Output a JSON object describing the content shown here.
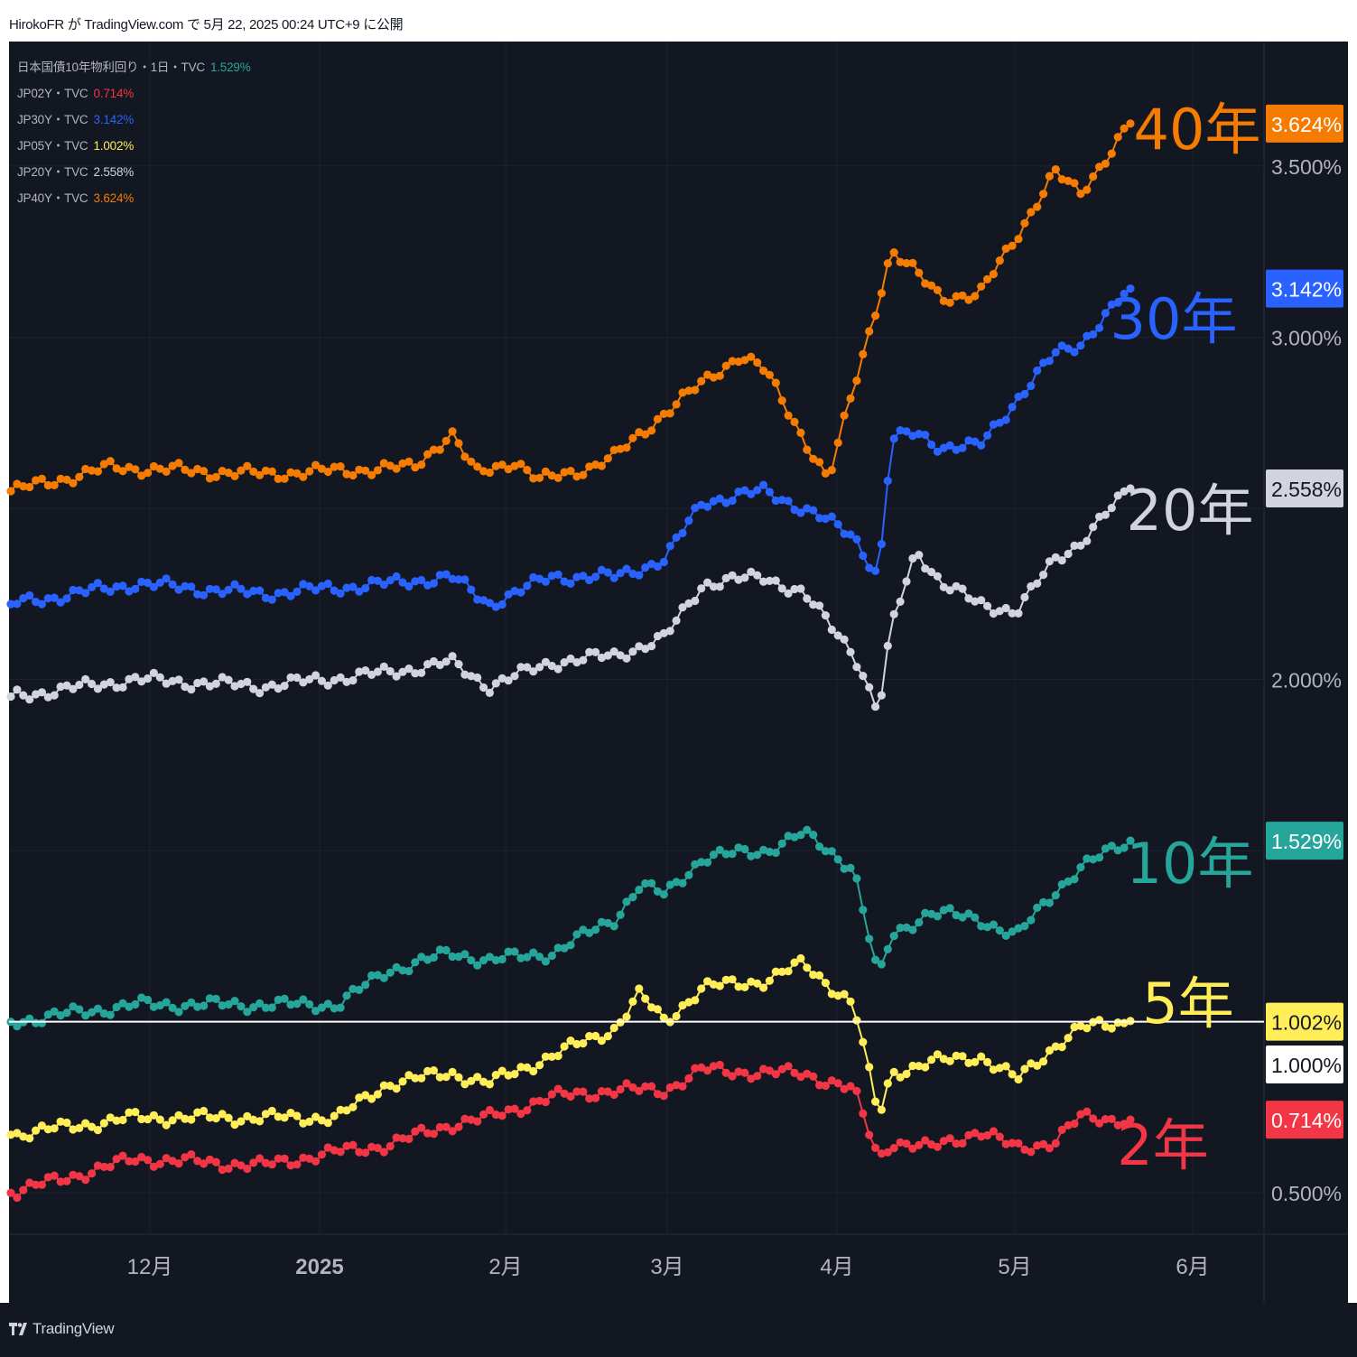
{
  "header": {
    "text": "HirokoFR が TradingView.com で 5月 22, 2025 00:24 UTC+9 に公開"
  },
  "brand": {
    "name": "TradingView"
  },
  "legend": [
    {
      "name": "日本国債10年物利回り・1日・TVC",
      "value": "1.529%",
      "color": "#26a69a"
    },
    {
      "name": "JP02Y・TVC",
      "value": "0.714%",
      "color": "#f23645"
    },
    {
      "name": "JP30Y・TVC",
      "value": "3.142%",
      "color": "#2962ff"
    },
    {
      "name": "JP05Y・TVC",
      "value": "1.002%",
      "color": "#ffee58"
    },
    {
      "name": "JP20Y・TVC",
      "value": "2.558%",
      "color": "#d1d4dc"
    },
    {
      "name": "JP40Y・TVC",
      "value": "3.624%",
      "color": "#f57c00"
    }
  ],
  "chart_data": {
    "type": "line",
    "title": "",
    "xlabel": "",
    "ylabel": "",
    "ylim": [
      0.38,
      3.84
    ],
    "x_ticks": [
      "12月",
      "2025",
      "2月",
      "3月",
      "4月",
      "5月",
      "6月"
    ],
    "y_ticks": [
      "3.500%",
      "3.000%",
      "2.000%",
      "0.500%"
    ],
    "horizontal_line": {
      "value": 1.0,
      "label": "1.000%",
      "color": "#ffffff"
    },
    "series": [
      {
        "name": "40年",
        "code": "JP40Y",
        "color": "#f57c00",
        "last": 3.624,
        "last_label": "3.624%",
        "anchors": [
          [
            0,
            2.55
          ],
          [
            0.08,
            2.62
          ],
          [
            0.2,
            2.6
          ],
          [
            0.32,
            2.62
          ],
          [
            0.35,
            2.72
          ],
          [
            0.37,
            2.6
          ],
          [
            0.4,
            2.64
          ],
          [
            0.42,
            2.58
          ],
          [
            0.46,
            2.62
          ],
          [
            0.48,
            2.65
          ],
          [
            0.52,
            2.78
          ],
          [
            0.58,
            2.95
          ],
          [
            0.6,
            2.9
          ],
          [
            0.65,
            2.58
          ],
          [
            0.67,
            2.85
          ],
          [
            0.7,
            3.25
          ],
          [
            0.74,
            3.12
          ],
          [
            0.77,
            3.12
          ],
          [
            0.8,
            3.3
          ],
          [
            0.83,
            3.48
          ],
          [
            0.85,
            3.42
          ],
          [
            0.89,
            3.624
          ]
        ]
      },
      {
        "name": "30年",
        "code": "JP30Y",
        "color": "#2962ff",
        "last": 3.142,
        "last_label": "3.142%",
        "anchors": [
          [
            0,
            2.22
          ],
          [
            0.1,
            2.28
          ],
          [
            0.2,
            2.25
          ],
          [
            0.3,
            2.28
          ],
          [
            0.35,
            2.3
          ],
          [
            0.38,
            2.22
          ],
          [
            0.43,
            2.3
          ],
          [
            0.48,
            2.3
          ],
          [
            0.52,
            2.35
          ],
          [
            0.55,
            2.52
          ],
          [
            0.6,
            2.55
          ],
          [
            0.63,
            2.5
          ],
          [
            0.67,
            2.42
          ],
          [
            0.69,
            2.3
          ],
          [
            0.7,
            2.7
          ],
          [
            0.72,
            2.72
          ],
          [
            0.74,
            2.68
          ],
          [
            0.77,
            2.68
          ],
          [
            0.8,
            2.82
          ],
          [
            0.83,
            2.95
          ],
          [
            0.85,
            2.98
          ],
          [
            0.89,
            3.142
          ]
        ]
      },
      {
        "name": "20年",
        "code": "JP20Y",
        "color": "#d1d4dc",
        "last": 2.558,
        "last_label": "2.558%",
        "anchors": [
          [
            0,
            1.95
          ],
          [
            0.1,
            2.0
          ],
          [
            0.2,
            1.98
          ],
          [
            0.3,
            2.02
          ],
          [
            0.35,
            2.05
          ],
          [
            0.38,
            1.98
          ],
          [
            0.43,
            2.05
          ],
          [
            0.48,
            2.07
          ],
          [
            0.52,
            2.12
          ],
          [
            0.55,
            2.28
          ],
          [
            0.6,
            2.3
          ],
          [
            0.63,
            2.25
          ],
          [
            0.67,
            2.08
          ],
          [
            0.69,
            1.9
          ],
          [
            0.7,
            2.15
          ],
          [
            0.72,
            2.38
          ],
          [
            0.74,
            2.28
          ],
          [
            0.77,
            2.22
          ],
          [
            0.8,
            2.2
          ],
          [
            0.83,
            2.35
          ],
          [
            0.85,
            2.4
          ],
          [
            0.89,
            2.558
          ]
        ]
      },
      {
        "name": "10年",
        "code": "JP10Y",
        "color": "#26a69a",
        "last": 1.529,
        "last_label": "1.529%",
        "anchors": [
          [
            0,
            1.0
          ],
          [
            0.1,
            1.05
          ],
          [
            0.2,
            1.05
          ],
          [
            0.26,
            1.05
          ],
          [
            0.3,
            1.15
          ],
          [
            0.35,
            1.2
          ],
          [
            0.38,
            1.18
          ],
          [
            0.43,
            1.2
          ],
          [
            0.48,
            1.3
          ],
          [
            0.5,
            1.4
          ],
          [
            0.52,
            1.37
          ],
          [
            0.55,
            1.48
          ],
          [
            0.6,
            1.5
          ],
          [
            0.63,
            1.55
          ],
          [
            0.67,
            1.45
          ],
          [
            0.69,
            1.12
          ],
          [
            0.7,
            1.25
          ],
          [
            0.73,
            1.32
          ],
          [
            0.77,
            1.3
          ],
          [
            0.8,
            1.25
          ],
          [
            0.83,
            1.38
          ],
          [
            0.85,
            1.45
          ],
          [
            0.89,
            1.529
          ]
        ]
      },
      {
        "name": "5年",
        "code": "JP05Y",
        "color": "#ffee58",
        "last": 1.002,
        "last_label": "1.002%",
        "anchors": [
          [
            0,
            0.67
          ],
          [
            0.1,
            0.72
          ],
          [
            0.2,
            0.72
          ],
          [
            0.26,
            0.72
          ],
          [
            0.3,
            0.82
          ],
          [
            0.35,
            0.85
          ],
          [
            0.38,
            0.82
          ],
          [
            0.43,
            0.9
          ],
          [
            0.48,
            0.98
          ],
          [
            0.5,
            1.08
          ],
          [
            0.52,
            1.0
          ],
          [
            0.55,
            1.1
          ],
          [
            0.6,
            1.12
          ],
          [
            0.63,
            1.17
          ],
          [
            0.67,
            1.05
          ],
          [
            0.69,
            0.72
          ],
          [
            0.7,
            0.85
          ],
          [
            0.73,
            0.88
          ],
          [
            0.77,
            0.9
          ],
          [
            0.8,
            0.83
          ],
          [
            0.83,
            0.93
          ],
          [
            0.85,
            0.98
          ],
          [
            0.89,
            1.002
          ]
        ]
      },
      {
        "name": "2年",
        "code": "JP02Y",
        "color": "#f23645",
        "last": 0.714,
        "last_label": "0.714%",
        "anchors": [
          [
            0,
            0.5
          ],
          [
            0.1,
            0.6
          ],
          [
            0.2,
            0.58
          ],
          [
            0.26,
            0.62
          ],
          [
            0.3,
            0.64
          ],
          [
            0.35,
            0.7
          ],
          [
            0.38,
            0.72
          ],
          [
            0.43,
            0.78
          ],
          [
            0.48,
            0.8
          ],
          [
            0.52,
            0.8
          ],
          [
            0.55,
            0.86
          ],
          [
            0.6,
            0.85
          ],
          [
            0.63,
            0.85
          ],
          [
            0.67,
            0.8
          ],
          [
            0.69,
            0.6
          ],
          [
            0.7,
            0.65
          ],
          [
            0.73,
            0.63
          ],
          [
            0.77,
            0.68
          ],
          [
            0.8,
            0.63
          ],
          [
            0.83,
            0.65
          ],
          [
            0.85,
            0.72
          ],
          [
            0.89,
            0.714
          ]
        ]
      }
    ]
  }
}
